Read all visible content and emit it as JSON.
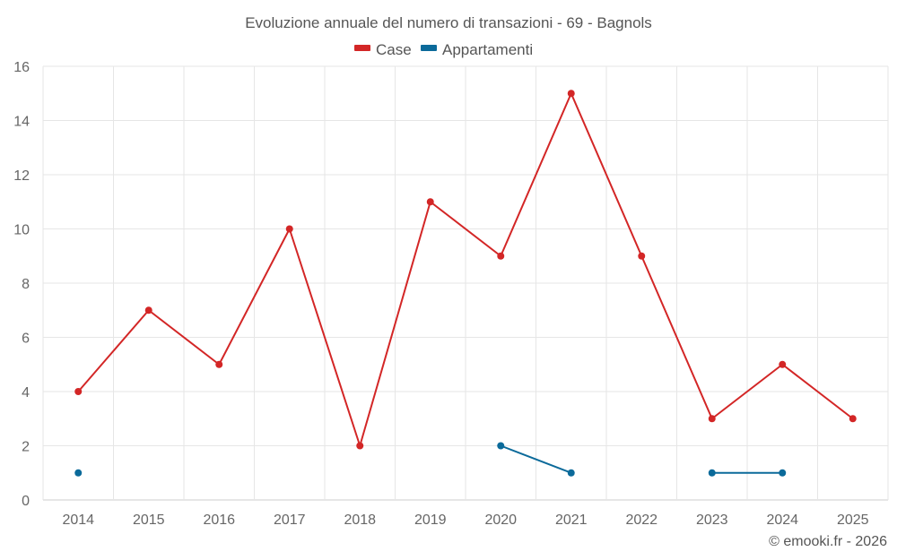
{
  "chart_data": {
    "type": "line",
    "title": "Evoluzione annuale del numero di transazioni - 69 - Bagnols",
    "categories": [
      "2014",
      "2015",
      "2016",
      "2017",
      "2018",
      "2019",
      "2020",
      "2021",
      "2022",
      "2023",
      "2024",
      "2025"
    ],
    "ylim": [
      0,
      16
    ],
    "yticks": [
      0,
      2,
      4,
      6,
      8,
      10,
      12,
      14,
      16
    ],
    "grid": true,
    "legend_position": "top-center",
    "series": [
      {
        "name": "Case",
        "color": "#d32626",
        "values": [
          4,
          7,
          5,
          10,
          2,
          11,
          9,
          15,
          9,
          3,
          5,
          3
        ]
      },
      {
        "name": "Appartamenti",
        "color": "#0b6a9a",
        "values": [
          1,
          null,
          null,
          null,
          null,
          null,
          2,
          1,
          null,
          1,
          1,
          null
        ]
      }
    ],
    "credit": "© emooki.fr - 2026"
  }
}
